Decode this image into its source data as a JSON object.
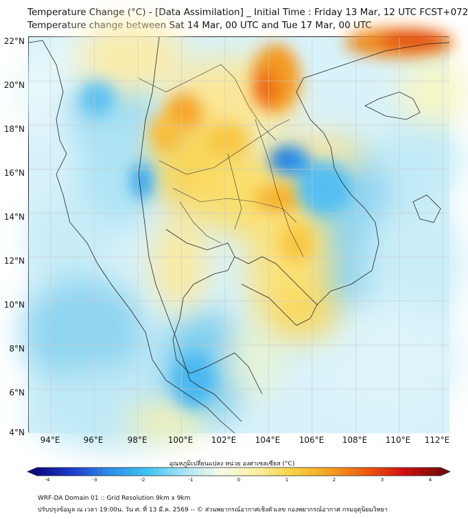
{
  "header": {
    "title_line1": "Temperature Change (°C) - [Data Assimilation] _ Initial Time : Friday 13 Mar, 12 UTC FCST+072",
    "title_line2": "Temperature change between Sat 14 Mar, 00 UTC and Tue 17 Mar, 00 UTC"
  },
  "map": {
    "lat_labels": [
      "22°N",
      "20°N",
      "18°N",
      "16°N",
      "14°N",
      "12°N",
      "10°N",
      "8°N",
      "6°N",
      "4°N"
    ],
    "lon_labels": [
      "94°E",
      "96°E",
      "98°E",
      "100°E",
      "102°E",
      "104°E",
      "106°E",
      "108°E",
      "110°E",
      "112°E"
    ],
    "lat_range": [
      4,
      22
    ],
    "lon_range": [
      93,
      112.3
    ]
  },
  "colorbar": {
    "title": "อุณหภูมิเปลี่ยนแปลง หน่วย องศาเซลเซียส (°C)",
    "ticks": [
      "-4",
      "-3",
      "-2",
      "-1",
      "0",
      "1",
      "2",
      "3",
      "4"
    ],
    "range": [
      -4,
      4
    ],
    "colors": [
      "#0a0a80",
      "#1f3fd0",
      "#2f8ee8",
      "#3cc4f0",
      "#a8e4f6",
      "#f4fbe8",
      "#fbf0a0",
      "#f8d040",
      "#f4a020",
      "#ec5a10",
      "#d01010",
      "#7a0a0a"
    ]
  },
  "footer": {
    "line1": "WRF-DA Domain 01 :: Grid Resolution 9km x 9km",
    "line2": "ปรับปรุงข้อมูล ณ เวลา 19:00น. วัน ศ. ที่ 13 มี.ค. 2569 -- © ส่วนพยากรณ์อากาศเชิงตัวเลข กองพยากรณ์อากาศ กรมอุตุนิยมวิทยา"
  }
}
